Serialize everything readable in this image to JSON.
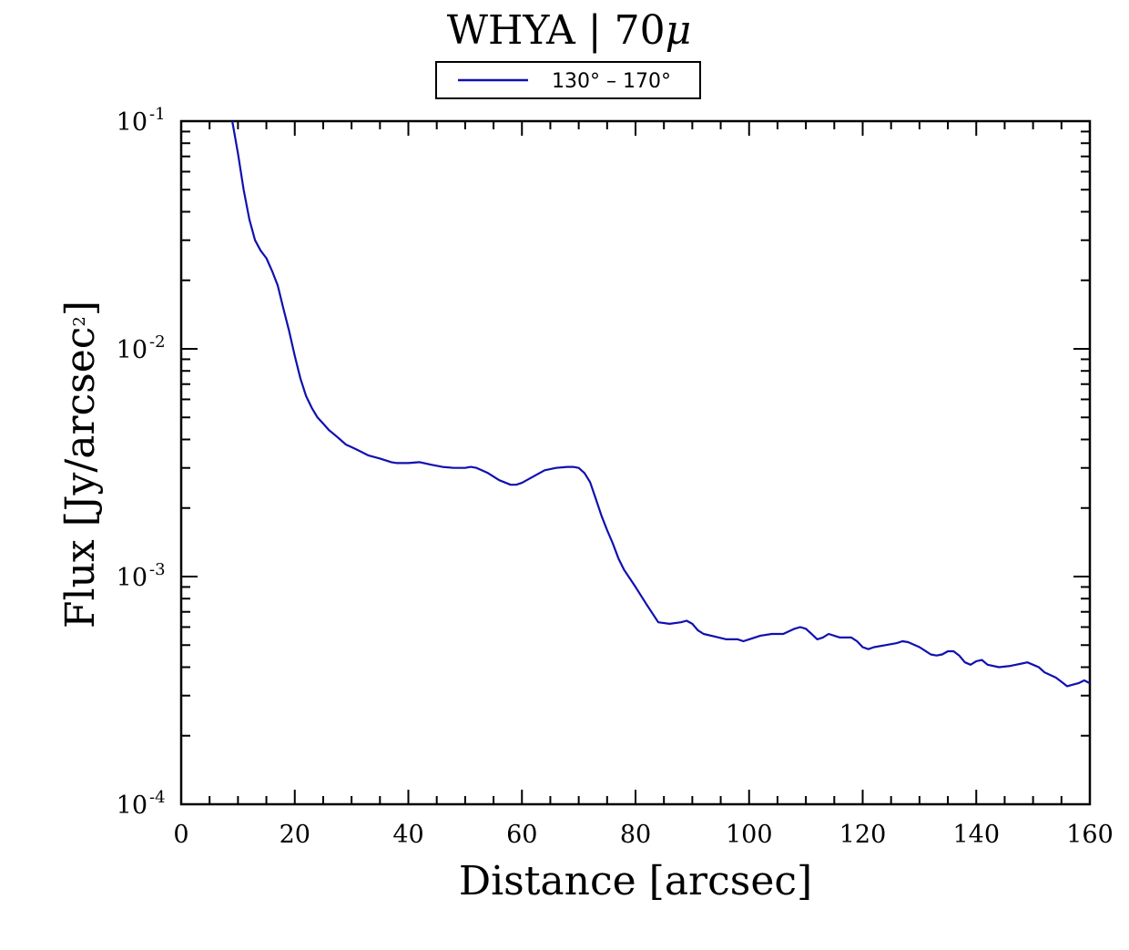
{
  "chart_data": {
    "type": "line",
    "title_main": "WHYA | 70",
    "title_mu": "μ",
    "xlabel": "Distance [arcsec]",
    "ylabel_base": "Flux [Jy/arcsec",
    "ylabel_sup": "2",
    "ylabel_end": "]",
    "xlim": [
      0,
      160
    ],
    "ylim": [
      0.0001,
      0.1
    ],
    "yscale": "log",
    "grid": false,
    "legend_position": "top-center",
    "x_ticks": [
      0,
      20,
      40,
      60,
      80,
      100,
      120,
      140,
      160
    ],
    "x_tick_labels": [
      "0",
      "20",
      "40",
      "60",
      "80",
      "100",
      "120",
      "140",
      "160"
    ],
    "y_ticks": [
      {
        "base": "10",
        "exp": "-1",
        "value": 0.1
      },
      {
        "base": "10",
        "exp": "-2",
        "value": 0.01
      },
      {
        "base": "10",
        "exp": "-3",
        "value": 0.001
      },
      {
        "base": "10",
        "exp": "-4",
        "value": 0.0001
      }
    ],
    "series": [
      {
        "name": "130° – 170°",
        "color": "#1010b0",
        "x": [
          9,
          10,
          11,
          12,
          13,
          14,
          15,
          16,
          17,
          18,
          19,
          20,
          21,
          22,
          23,
          24,
          25,
          26,
          27,
          28,
          29,
          30,
          31,
          33,
          35,
          37,
          38,
          40,
          42,
          44,
          46,
          48,
          50,
          51,
          52,
          54,
          56,
          58,
          59,
          60,
          62,
          64,
          66,
          68,
          69,
          70,
          71,
          72,
          73,
          74,
          75,
          76,
          77,
          78,
          80,
          82,
          84,
          86,
          88,
          89,
          90,
          91,
          92,
          94,
          96,
          98,
          99,
          100,
          102,
          104,
          106,
          108,
          109,
          110,
          111,
          112,
          113,
          114,
          116,
          118,
          119,
          120,
          121,
          122,
          124,
          126,
          127,
          128,
          130,
          132,
          133,
          134,
          135,
          136,
          137,
          138,
          139,
          140,
          141,
          142,
          144,
          146,
          147,
          148,
          149,
          150,
          151,
          152,
          154,
          155,
          156,
          157,
          158,
          159,
          160
        ],
        "y": [
          0.1,
          0.072,
          0.05,
          0.037,
          0.03,
          0.027,
          0.025,
          0.022,
          0.019,
          0.015,
          0.012,
          0.0093,
          0.0074,
          0.0062,
          0.0055,
          0.005,
          0.0047,
          0.0044,
          0.0042,
          0.004,
          0.0038,
          0.0037,
          0.0036,
          0.0034,
          0.0033,
          0.00318,
          0.00315,
          0.00315,
          0.00318,
          0.0031,
          0.00303,
          0.003,
          0.003,
          0.00303,
          0.003,
          0.00285,
          0.00265,
          0.00253,
          0.00253,
          0.00258,
          0.00275,
          0.00293,
          0.003,
          0.00303,
          0.00303,
          0.003,
          0.00285,
          0.0026,
          0.0022,
          0.00185,
          0.0016,
          0.0014,
          0.0012,
          0.00107,
          0.0009,
          0.00075,
          0.00063,
          0.00062,
          0.00063,
          0.00064,
          0.00062,
          0.00058,
          0.00056,
          0.000545,
          0.00053,
          0.00053,
          0.00052,
          0.00053,
          0.00055,
          0.00056,
          0.00056,
          0.00059,
          0.0006,
          0.00059,
          0.00056,
          0.00053,
          0.00054,
          0.00056,
          0.00054,
          0.00054,
          0.00052,
          0.00049,
          0.00048,
          0.00049,
          0.0005,
          0.00051,
          0.00052,
          0.000515,
          0.00049,
          0.000455,
          0.00045,
          0.000455,
          0.00047,
          0.00047,
          0.00045,
          0.00042,
          0.00041,
          0.000425,
          0.00043,
          0.00041,
          0.0004,
          0.000405,
          0.00041,
          0.000415,
          0.00042,
          0.00041,
          0.0004,
          0.00038,
          0.00036,
          0.000345,
          0.00033,
          0.000335,
          0.00034,
          0.00035,
          0.00034
        ]
      }
    ]
  }
}
